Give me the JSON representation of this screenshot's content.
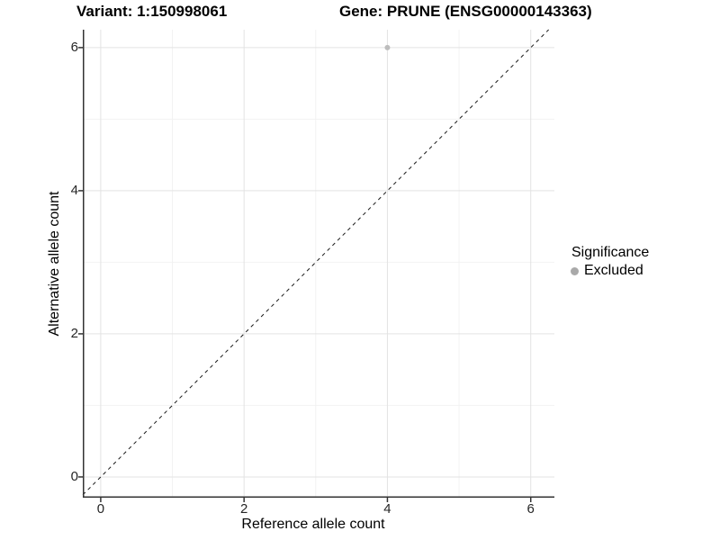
{
  "header": {
    "title_variant": "Variant: 1:150998061",
    "title_gene": "Gene: PRUNE (ENSG00000143363)"
  },
  "axes": {
    "x_label": "Reference allele count",
    "y_label": "Alternative allele count"
  },
  "legend": {
    "title": "Significance",
    "position": "right",
    "items": [
      {
        "label": "Excluded",
        "color": "#a9a9a9"
      }
    ]
  },
  "chart_data": {
    "type": "scatter",
    "title": "Variant: 1:150998061 — Gene: PRUNE (ENSG00000143363)",
    "xlabel": "Reference allele count",
    "ylabel": "Alternative allele count",
    "xlim": [
      -0.25,
      6.33
    ],
    "ylim": [
      -0.29,
      6.25
    ],
    "x_major_ticks": [
      0,
      2,
      4,
      6
    ],
    "y_major_ticks": [
      0,
      2,
      4,
      6
    ],
    "x_minor_ticks": [
      1,
      3,
      5
    ],
    "y_minor_ticks": [
      1,
      3,
      5
    ],
    "grid": "on",
    "series": [
      {
        "name": "Excluded",
        "color": "#bdbdbd",
        "points": [
          {
            "x": 4,
            "y": 6
          }
        ]
      }
    ],
    "identity_line": {
      "slope": 1,
      "intercept": 0,
      "style": "dashed",
      "color": "#1a1a1a"
    },
    "style": {
      "grid_major_color": "#e3e3e3",
      "grid_minor_color": "#f2f2f2",
      "axis_line_color": "#333333",
      "point_radius": 3,
      "tick_length": 5
    }
  }
}
